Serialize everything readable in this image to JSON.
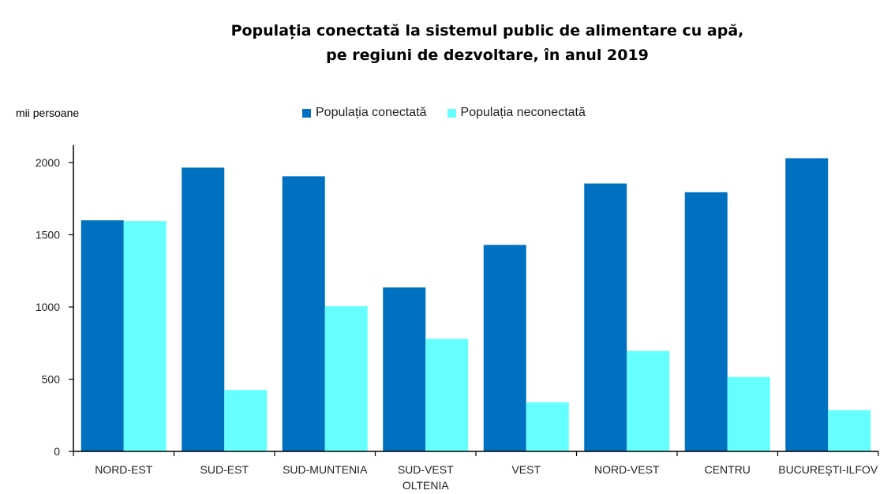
{
  "chart_data": {
    "type": "bar",
    "title_line1": "Populația conectată la sistemul public de alimentare cu apă,",
    "title_line2": "pe regiuni de dezvoltare,  în anul 2019",
    "ylabel": "mii persoane",
    "ylim": [
      0,
      2100
    ],
    "yticks": [
      0,
      500,
      1000,
      1500,
      2000
    ],
    "categories": [
      [
        "NORD-EST"
      ],
      [
        "SUD-EST"
      ],
      [
        "SUD-MUNTENIA"
      ],
      [
        "SUD-VEST",
        "OLTENIA"
      ],
      [
        "VEST"
      ],
      [
        "NORD-VEST"
      ],
      [
        "CENTRU"
      ],
      [
        "BUCUREŞTI-ILFOV"
      ]
    ],
    "series": [
      {
        "name": "Populația conectată",
        "color": "#0070C0",
        "values": [
          1600,
          1965,
          1905,
          1135,
          1430,
          1855,
          1795,
          2030
        ]
      },
      {
        "name": "Populația neconectată",
        "color": "#66FFFF",
        "values": [
          1595,
          425,
          1005,
          780,
          340,
          695,
          515,
          285
        ]
      }
    ],
    "legend_position": "top",
    "grid": false
  }
}
